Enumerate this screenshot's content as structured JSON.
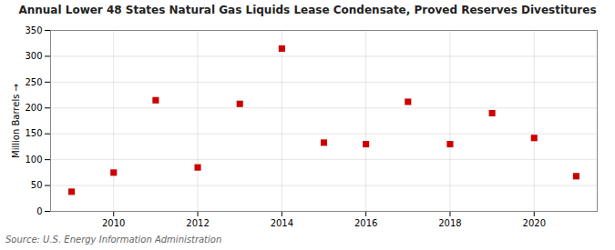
{
  "chart_data": {
    "type": "scatter",
    "title": "Annual Lower 48 States Natural Gas Liquids Lease Condensate, Proved Reserves Divestitures",
    "ylabel": "Million Barrels",
    "source": "Source: U.S. Energy Information Administration",
    "x": [
      2009,
      2010,
      2011,
      2012,
      2013,
      2014,
      2015,
      2016,
      2017,
      2018,
      2019,
      2020,
      2021
    ],
    "values": [
      38,
      75,
      215,
      85,
      208,
      315,
      133,
      130,
      212,
      130,
      190,
      142,
      68
    ],
    "color": "#cc0000",
    "marker": "square",
    "xlim": [
      2008.5,
      2021.5
    ],
    "xticks": [
      2010,
      2012,
      2014,
      2016,
      2018,
      2020
    ],
    "ylim": [
      0,
      350
    ],
    "yticks": [
      0,
      50,
      100,
      150,
      200,
      250,
      300,
      350
    ],
    "grid": true
  }
}
